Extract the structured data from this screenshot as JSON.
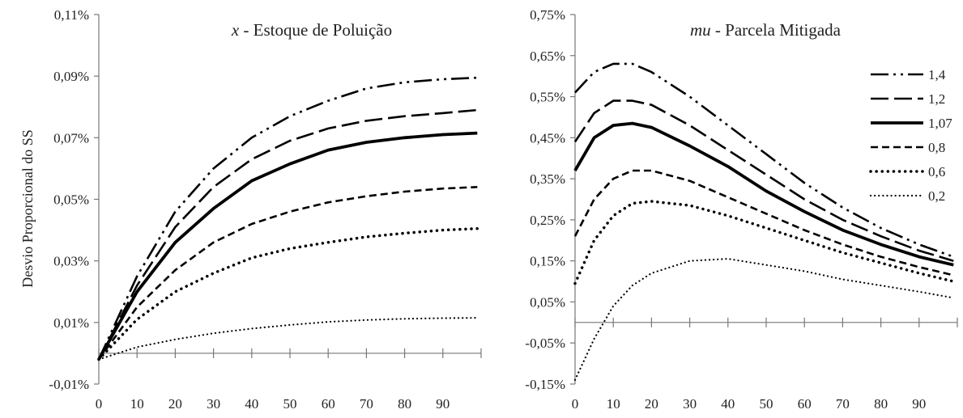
{
  "y_axis_title": "Desvio Proporcional do SS",
  "chart_data": [
    {
      "type": "line",
      "title_var": "x",
      "title_rest": " - Estoque de Poluição",
      "xlabel": "",
      "ylabel": "Desvio Proporcional do SS",
      "xlim": [
        0,
        100
      ],
      "ylim": [
        -0.01,
        0.11
      ],
      "x_ticks": [
        "0",
        "10",
        "20",
        "30",
        "40",
        "50",
        "60",
        "70",
        "80",
        "90"
      ],
      "y_ticks": [
        "-0,01%",
        "0,01%",
        "0,03%",
        "0,05%",
        "0,07%",
        "0,09%",
        "0,11%"
      ],
      "grid": false,
      "legend": "none",
      "x": [
        0,
        10,
        20,
        30,
        40,
        50,
        60,
        70,
        80,
        90,
        99
      ],
      "series": [
        {
          "name": "1,4",
          "values": [
            -0.002,
            0.025,
            0.046,
            0.06,
            0.07,
            0.077,
            0.082,
            0.086,
            0.088,
            0.089,
            0.0895
          ]
        },
        {
          "name": "1,2",
          "values": [
            -0.002,
            0.022,
            0.041,
            0.054,
            0.063,
            0.069,
            0.073,
            0.0755,
            0.077,
            0.078,
            0.079
          ]
        },
        {
          "name": "1,07",
          "values": [
            -0.002,
            0.02,
            0.036,
            0.047,
            0.056,
            0.0615,
            0.066,
            0.0685,
            0.07,
            0.071,
            0.0715
          ]
        },
        {
          "name": "0,8",
          "values": [
            -0.002,
            0.015,
            0.027,
            0.036,
            0.042,
            0.046,
            0.049,
            0.051,
            0.0525,
            0.0535,
            0.054
          ]
        },
        {
          "name": "0,6",
          "values": [
            -0.002,
            0.011,
            0.02,
            0.026,
            0.031,
            0.034,
            0.036,
            0.0378,
            0.039,
            0.04,
            0.0405
          ]
        },
        {
          "name": "0,2",
          "values": [
            -0.002,
            0.002,
            0.0045,
            0.0065,
            0.008,
            0.0092,
            0.0102,
            0.0108,
            0.0112,
            0.0114,
            0.0115
          ]
        }
      ]
    },
    {
      "type": "line",
      "title_var": "mu",
      "title_rest": " - Parcela Mitigada",
      "xlabel": "",
      "ylabel": "",
      "xlim": [
        0,
        100
      ],
      "ylim": [
        -0.15,
        0.75
      ],
      "x_ticks": [
        "0",
        "10",
        "20",
        "30",
        "40",
        "50",
        "60",
        "70",
        "80",
        "90"
      ],
      "y_ticks": [
        "-0,15%",
        "-0,05%",
        "0,05%",
        "0,15%",
        "0,25%",
        "0,35%",
        "0,45%",
        "0,55%",
        "0,65%",
        "0,75%"
      ],
      "grid": false,
      "legend": "top-right",
      "x": [
        0,
        5,
        10,
        15,
        20,
        30,
        40,
        50,
        60,
        70,
        80,
        90,
        99
      ],
      "series": [
        {
          "name": "1,4",
          "values": [
            0.56,
            0.61,
            0.63,
            0.63,
            0.61,
            0.55,
            0.48,
            0.41,
            0.34,
            0.28,
            0.23,
            0.19,
            0.16
          ]
        },
        {
          "name": "1,2",
          "values": [
            0.44,
            0.51,
            0.54,
            0.54,
            0.53,
            0.48,
            0.42,
            0.36,
            0.3,
            0.25,
            0.21,
            0.175,
            0.15
          ]
        },
        {
          "name": "1,07",
          "values": [
            0.37,
            0.45,
            0.48,
            0.485,
            0.475,
            0.43,
            0.38,
            0.32,
            0.27,
            0.225,
            0.19,
            0.16,
            0.14
          ]
        },
        {
          "name": "0,8",
          "values": [
            0.21,
            0.3,
            0.35,
            0.37,
            0.37,
            0.345,
            0.305,
            0.265,
            0.225,
            0.19,
            0.16,
            0.135,
            0.115
          ]
        },
        {
          "name": "0,6",
          "values": [
            0.095,
            0.2,
            0.26,
            0.29,
            0.295,
            0.285,
            0.26,
            0.23,
            0.2,
            0.17,
            0.145,
            0.12,
            0.1
          ]
        },
        {
          "name": "0,2",
          "values": [
            -0.14,
            -0.04,
            0.04,
            0.09,
            0.12,
            0.15,
            0.155,
            0.14,
            0.125,
            0.105,
            0.09,
            0.075,
            0.06
          ]
        }
      ]
    }
  ]
}
